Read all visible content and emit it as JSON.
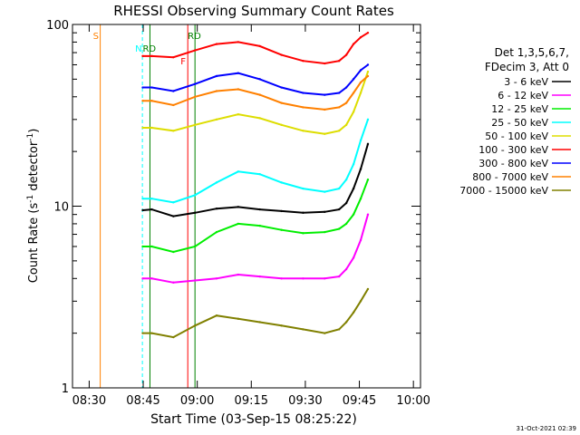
{
  "chart_data": {
    "type": "line",
    "title": "RHESSI Observing Summary Count Rates",
    "xlabel": "Start Time (03-Sep-15 08:25:22)",
    "ylabel_main": "Count Rate (s",
    "ylabel_sup": "-1",
    "ylabel_tail": " detector",
    "ylabel_end": ")",
    "yscale": "log",
    "ylim": [
      1,
      100
    ],
    "xlim_minutes": [
      0,
      96.6
    ],
    "x_tick_labels": [
      "08:30",
      "08:45",
      "09:00",
      "09:15",
      "09:30",
      "09:45",
      "10:00"
    ],
    "x_tick_minutes": [
      4.63,
      19.63,
      34.63,
      49.63,
      64.63,
      79.63,
      94.63
    ],
    "y_tick_labels": [
      "1",
      "10",
      "100"
    ],
    "y_tick_values": [
      1,
      10,
      100
    ],
    "info_lines": [
      "Det 1,3,5,6,7,",
      "FDecim 3, Att 0"
    ],
    "series": [
      {
        "name": "3 - 6 keV",
        "color": "#000000",
        "x": [
          19.5,
          22,
          28,
          34,
          40,
          46,
          52,
          58,
          64,
          70,
          74,
          76,
          78,
          80,
          82
        ],
        "y": [
          9.5,
          9.6,
          8.8,
          9.2,
          9.7,
          9.9,
          9.6,
          9.4,
          9.2,
          9.3,
          9.6,
          10.4,
          12.5,
          16,
          22
        ]
      },
      {
        "name": "6 - 12 keV",
        "color": "#ff00ff",
        "x": [
          19.5,
          22,
          28,
          34,
          40,
          46,
          52,
          58,
          64,
          70,
          74,
          76,
          78,
          80,
          82
        ],
        "y": [
          4.0,
          4.0,
          3.8,
          3.9,
          4.0,
          4.2,
          4.1,
          4.0,
          4.0,
          4.0,
          4.1,
          4.5,
          5.2,
          6.5,
          9.0
        ]
      },
      {
        "name": "12 - 25 keV",
        "color": "#00ee00",
        "x": [
          19.5,
          22,
          28,
          34,
          40,
          46,
          52,
          58,
          64,
          70,
          74,
          76,
          78,
          80,
          82
        ],
        "y": [
          6.0,
          6.0,
          5.6,
          6.0,
          7.2,
          8.0,
          7.8,
          7.4,
          7.1,
          7.2,
          7.5,
          8.0,
          9.0,
          11.0,
          14.0
        ]
      },
      {
        "name": "25 - 50 keV",
        "color": "#00ffff",
        "x": [
          19.5,
          22,
          28,
          34,
          40,
          46,
          52,
          58,
          64,
          70,
          74,
          76,
          78,
          80,
          82
        ],
        "y": [
          11.0,
          11.0,
          10.5,
          11.5,
          13.5,
          15.5,
          15.0,
          13.5,
          12.5,
          12.0,
          12.5,
          14.0,
          17.0,
          23.0,
          30.0
        ]
      },
      {
        "name": "50 - 100 keV",
        "color": "#dddd00",
        "x": [
          19.5,
          22,
          28,
          34,
          40,
          46,
          52,
          58,
          64,
          70,
          74,
          76,
          78,
          80,
          82
        ],
        "y": [
          27.0,
          27.0,
          26.0,
          28.0,
          30.0,
          32.0,
          30.5,
          28.0,
          26.0,
          25.0,
          26.0,
          28.0,
          33.0,
          42.0,
          55.0
        ]
      },
      {
        "name": "100 - 300 keV",
        "color": "#ff0000",
        "x": [
          19.5,
          22,
          28,
          34,
          40,
          46,
          52,
          58,
          64,
          70,
          74,
          76,
          78,
          80,
          82
        ],
        "y": [
          67.0,
          67.0,
          66.0,
          72.0,
          78.0,
          80.0,
          76.0,
          68.0,
          63.0,
          61.0,
          63.0,
          68.0,
          78.0,
          85.0,
          90.0
        ]
      },
      {
        "name": "300 - 800 keV",
        "color": "#0000ff",
        "x": [
          19.5,
          22,
          28,
          34,
          40,
          46,
          52,
          58,
          64,
          70,
          74,
          76,
          78,
          80,
          82
        ],
        "y": [
          45.0,
          45.0,
          43.0,
          47.0,
          52.0,
          54.0,
          50.0,
          45.0,
          42.0,
          41.0,
          42.0,
          45.0,
          50.0,
          56.0,
          60.0
        ]
      },
      {
        "name": "800 - 7000 keV",
        "color": "#ff8000",
        "x": [
          19.5,
          22,
          28,
          34,
          40,
          46,
          52,
          58,
          64,
          70,
          74,
          76,
          78,
          80,
          82
        ],
        "y": [
          38.0,
          38.0,
          36.0,
          40.0,
          43.0,
          44.0,
          41.0,
          37.0,
          35.0,
          34.0,
          35.0,
          37.0,
          42.0,
          48.0,
          52.0
        ]
      },
      {
        "name": "7000 - 15000 keV",
        "color": "#808000",
        "x": [
          19.5,
          22,
          28,
          34,
          40,
          46,
          52,
          58,
          64,
          70,
          74,
          76,
          78,
          80,
          82
        ],
        "y": [
          2.0,
          2.0,
          1.9,
          2.2,
          2.5,
          2.4,
          2.3,
          2.2,
          2.1,
          2.0,
          2.1,
          2.3,
          2.6,
          3.0,
          3.5
        ]
      }
    ],
    "markers": [
      {
        "label": "S",
        "color": "#ff8000",
        "x": 7.7
      },
      {
        "label": "N",
        "color": "#00ffff",
        "x": 19.4
      },
      {
        "label": "F",
        "color": "#ff0000",
        "x": 32.0
      },
      {
        "label": "RD",
        "color": "#008000",
        "x": 34.0
      },
      {
        "label": "RD",
        "color": "#008000",
        "x": 21.5
      }
    ],
    "timestamp": "31-Oct-2021 02:39"
  }
}
